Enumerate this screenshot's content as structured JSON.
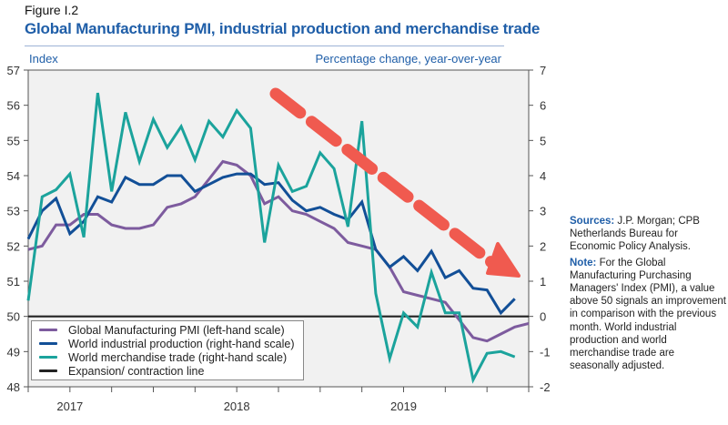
{
  "figure_label": "Figure I.2",
  "chart_data": {
    "type": "line",
    "title": "Global Manufacturing PMI, industrial production and merchandise trade",
    "ylabel_left": "Index",
    "ylabel_right": "Percentage change, year-over-year",
    "ylim_left": [
      48,
      57
    ],
    "ylim_right": [
      -2,
      7
    ],
    "yticks_left": [
      "48",
      "49",
      "50",
      "51",
      "52",
      "53",
      "54",
      "55",
      "56",
      "57"
    ],
    "yticks_right": [
      "-2",
      "-1",
      "0",
      "1",
      "2",
      "3",
      "4",
      "5",
      "6",
      "7"
    ],
    "x_tick_labels": [
      "2017",
      "2018",
      "2019"
    ],
    "x_start": "2016-10",
    "x_months_span": 36,
    "grid": false,
    "legend_position": "bottom-left",
    "series": [
      {
        "name": "Global Manufacturing PMI (left-hand scale)",
        "axis": "left",
        "color": "#7d5b9e",
        "values": [
          51.9,
          52.0,
          52.6,
          52.6,
          52.9,
          52.9,
          52.6,
          52.5,
          52.5,
          52.6,
          53.1,
          53.2,
          53.4,
          53.9,
          54.4,
          54.3,
          54.0,
          53.2,
          53.4,
          53.0,
          52.9,
          52.7,
          52.5,
          52.1,
          52.0,
          51.9,
          51.4,
          50.7,
          50.6,
          50.5,
          50.4,
          49.9,
          49.4,
          49.3,
          49.5,
          49.7,
          49.8
        ]
      },
      {
        "name": "World industrial production (right-hand scale)",
        "axis": "right",
        "color": "#124f97",
        "values": [
          2.2,
          3.0,
          3.35,
          2.35,
          2.7,
          3.4,
          3.25,
          3.95,
          3.75,
          3.75,
          4.0,
          4.0,
          3.55,
          3.75,
          3.95,
          4.05,
          4.05,
          3.75,
          3.8,
          3.3,
          3.0,
          3.1,
          2.9,
          2.75,
          3.25,
          1.9,
          1.4,
          1.7,
          1.3,
          1.85,
          1.1,
          1.3,
          0.8,
          0.75,
          0.1,
          0.5
        ]
      },
      {
        "name": "World merchandise trade (right-hand scale)",
        "axis": "right",
        "color": "#1ba39c",
        "values": [
          0.45,
          3.4,
          3.6,
          4.05,
          2.25,
          6.35,
          3.55,
          5.8,
          4.4,
          5.6,
          4.8,
          5.4,
          4.45,
          5.55,
          5.1,
          5.85,
          5.35,
          2.1,
          4.3,
          3.55,
          3.7,
          4.65,
          4.2,
          2.55,
          5.55,
          0.65,
          -1.2,
          0.1,
          -0.3,
          1.25,
          0.1,
          0.1,
          -1.8,
          -1.05,
          -1.0,
          -1.15
        ]
      },
      {
        "name": "Expansion/ contraction line",
        "axis": "left",
        "color": "#222222",
        "values": [
          50
        ]
      }
    ],
    "annotation": {
      "type": "dashed-arrow",
      "meaning": "downward trend",
      "color": "#f05a4f"
    }
  },
  "notes": {
    "sources_label": "Sources:",
    "sources_text": " J.P. Morgan; CPB Netherlands Bureau for Economic Policy Analysis.",
    "note_label": "Note:",
    "note_text": " For the Global Manufacturing Purchasing Managers' Index (PMI), a value above 50 signals an improvement in comparison with the previous month. World industrial production and world merchandise trade are seasonally adjusted."
  }
}
